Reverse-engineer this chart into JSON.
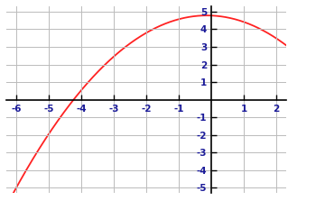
{
  "xlim": [
    -6.3,
    2.3
  ],
  "ylim": [
    -5.3,
    5.3
  ],
  "xticks": [
    -6,
    -5,
    -4,
    -3,
    -2,
    -1,
    1,
    2
  ],
  "yticks": [
    -5,
    -4,
    -3,
    -2,
    -1,
    1,
    2,
    3,
    4,
    5
  ],
  "x_tick_labels": [
    "-6",
    "-5",
    "-4",
    "-3",
    "-2",
    "-1",
    "1",
    "2"
  ],
  "y_tick_labels": [
    "-5",
    "-4",
    "-3",
    "-2",
    "-1",
    "1",
    "2",
    "3",
    "4",
    "5"
  ],
  "curve_color": "#ff2222",
  "curve_linewidth": 1.3,
  "background_color": "#ffffff",
  "grid_color": "#bbbbbb",
  "axis_color": "#000000",
  "tick_label_color": "#1a1a99",
  "x_start": -6.3,
  "x_end": 2.3,
  "figsize": [
    3.6,
    2.33
  ],
  "dpi": 100,
  "points_x": [
    -5,
    -2,
    1,
    2
  ],
  "points_y": [
    -2,
    4,
    4,
    3.75
  ]
}
